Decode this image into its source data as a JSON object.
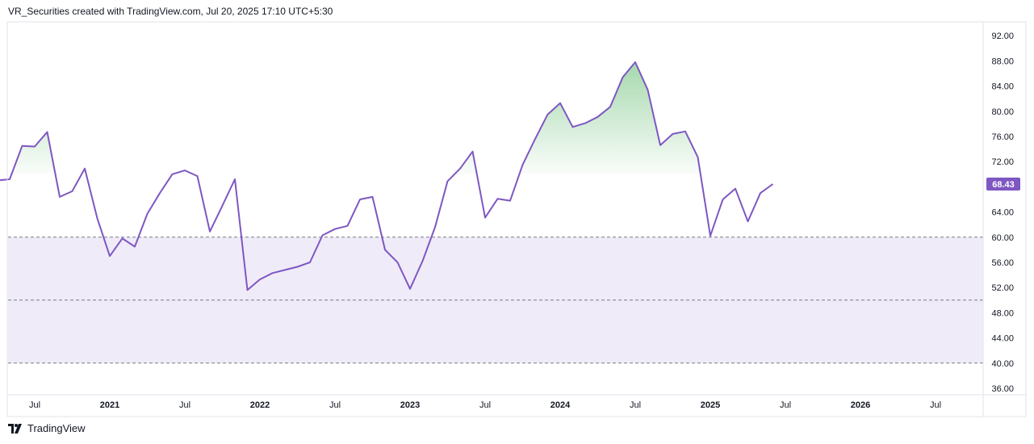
{
  "header": {
    "text": "VR_Securities created with TradingView.com, Jul 20, 2025 17:10 UTC+5:30"
  },
  "footer": {
    "logo_icon": "tradingview-logo-icon",
    "brand": "TradingView"
  },
  "colors": {
    "line": "#7e57c2",
    "band_fill": "#efebf8",
    "overbought_fill": "#5ab868",
    "level_line": "#787b86",
    "axis_border": "#e0e3eb",
    "price_tag": "#7e57c2"
  },
  "chart_data": {
    "type": "line",
    "title": "",
    "xlabel": "",
    "ylabel": "",
    "ylim": [
      34,
      94
    ],
    "y_ticks": [
      "36.00",
      "40.00",
      "44.00",
      "48.00",
      "52.00",
      "56.00",
      "60.00",
      "64.00",
      "68.00",
      "72.00",
      "76.00",
      "80.00",
      "84.00",
      "88.00",
      "92.00"
    ],
    "x_tick_labels": [
      {
        "label": "Jul",
        "date": "2020-07",
        "bold": false
      },
      {
        "label": "2021",
        "date": "2021-01",
        "bold": true
      },
      {
        "label": "Jul",
        "date": "2021-07",
        "bold": false
      },
      {
        "label": "2022",
        "date": "2022-01",
        "bold": true
      },
      {
        "label": "Jul",
        "date": "2022-07",
        "bold": false
      },
      {
        "label": "2023",
        "date": "2023-01",
        "bold": true
      },
      {
        "label": "Jul",
        "date": "2023-07",
        "bold": false
      },
      {
        "label": "2024",
        "date": "2024-01",
        "bold": true
      },
      {
        "label": "Jul",
        "date": "2024-07",
        "bold": false
      },
      {
        "label": "2025",
        "date": "2025-01",
        "bold": true
      },
      {
        "label": "Jul",
        "date": "2025-07",
        "bold": false
      },
      {
        "label": "2026",
        "date": "2026-01",
        "bold": true
      },
      {
        "label": "Jul",
        "date": "2026-07",
        "bold": false
      }
    ],
    "levels": [
      60,
      50,
      40
    ],
    "band": [
      40,
      60
    ],
    "overbought_level": 70,
    "last_value": "68.43",
    "series": [
      {
        "x": [
          "2020-04",
          "2020-05",
          "2020-06",
          "2020-07",
          "2020-08",
          "2020-09",
          "2020-10",
          "2020-11",
          "2020-12",
          "2021-01",
          "2021-02",
          "2021-03",
          "2021-04",
          "2021-05",
          "2021-06",
          "2021-07",
          "2021-08",
          "2021-09",
          "2021-10",
          "2021-11",
          "2021-12",
          "2022-01",
          "2022-02",
          "2022-03",
          "2022-04",
          "2022-05",
          "2022-06",
          "2022-07",
          "2022-08",
          "2022-09",
          "2022-10",
          "2022-11",
          "2022-12",
          "2023-01",
          "2023-02",
          "2023-03",
          "2023-04",
          "2023-05",
          "2023-06",
          "2023-07",
          "2023-08",
          "2023-09",
          "2023-10",
          "2023-11",
          "2023-12",
          "2024-01",
          "2024-02",
          "2024-03",
          "2024-04",
          "2024-05",
          "2024-06",
          "2024-07",
          "2024-08",
          "2024-09",
          "2024-10",
          "2024-11",
          "2024-12",
          "2025-01",
          "2025-02",
          "2025-03",
          "2025-04",
          "2025-05",
          "2025-06"
        ],
        "values": [
          69.0,
          69.2,
          74.5,
          74.4,
          76.7,
          66.4,
          67.3,
          70.9,
          63.0,
          57.0,
          59.8,
          58.5,
          63.7,
          67.0,
          70.0,
          70.6,
          69.7,
          60.9,
          65.0,
          69.2,
          51.6,
          53.3,
          54.3,
          54.8,
          55.3,
          56.0,
          60.3,
          61.3,
          61.8,
          66.0,
          66.4,
          58.0,
          56.0,
          51.8,
          56.2,
          61.6,
          68.9,
          70.9,
          73.6,
          63.1,
          66.1,
          65.8,
          71.5,
          75.6,
          79.5,
          81.3,
          77.5,
          78.1,
          79.1,
          80.7,
          85.4,
          87.8,
          83.4,
          74.6,
          76.4,
          76.8,
          72.7,
          60.2,
          66.0,
          67.7,
          62.5,
          67.0,
          68.43
        ]
      }
    ]
  }
}
